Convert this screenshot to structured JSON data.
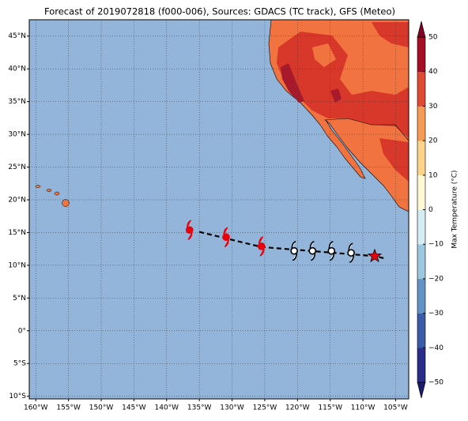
{
  "title": "Forecast of 2019072818 (f000-006), Sources: GDACS (TC track), GFS (Meteo)",
  "map": {
    "xlim": [
      -161,
      -103
    ],
    "ylim": [
      -10.4,
      47.5
    ],
    "xticks": [
      {
        "value": -160,
        "label": "160°W"
      },
      {
        "value": -155,
        "label": "155°W"
      },
      {
        "value": -150,
        "label": "150°W"
      },
      {
        "value": -145,
        "label": "145°W"
      },
      {
        "value": -140,
        "label": "140°W"
      },
      {
        "value": -135,
        "label": "135°W"
      },
      {
        "value": -130,
        "label": "130°W"
      },
      {
        "value": -125,
        "label": "125°W"
      },
      {
        "value": -120,
        "label": "120°W"
      },
      {
        "value": -115,
        "label": "115°W"
      },
      {
        "value": -110,
        "label": "110°W"
      },
      {
        "value": -105,
        "label": "105°W"
      }
    ],
    "yticks": [
      {
        "value": -10,
        "label": "10°S"
      },
      {
        "value": -5,
        "label": "5°S"
      },
      {
        "value": 0,
        "label": "0°"
      },
      {
        "value": 5,
        "label": "5°N"
      },
      {
        "value": 10,
        "label": "10°N"
      },
      {
        "value": 15,
        "label": "15°N"
      },
      {
        "value": 20,
        "label": "20°N"
      },
      {
        "value": 25,
        "label": "25°N"
      },
      {
        "value": 30,
        "label": "30°N"
      },
      {
        "value": 35,
        "label": "35°N"
      },
      {
        "value": 40,
        "label": "40°N"
      },
      {
        "value": 45,
        "label": "45°N"
      }
    ],
    "grid": true
  },
  "colorbar": {
    "label": "Max Temperature (°C)",
    "lim": [
      -50,
      50
    ],
    "ticks": [
      {
        "value": -50,
        "label": "−50"
      },
      {
        "value": -40,
        "label": "−40"
      },
      {
        "value": -30,
        "label": "−30"
      },
      {
        "value": -20,
        "label": "−20"
      },
      {
        "value": -10,
        "label": "−10"
      },
      0,
      10,
      20,
      30,
      40,
      50
    ],
    "colors": [
      "#2a2c8a",
      "#3a5ba8",
      "#6393c4",
      "#9cc7df",
      "#d5ecf2",
      "#fef9d3",
      "#fed48a",
      "#f79a55",
      "#df4a32",
      "#a50f26"
    ],
    "under": "#1b1b6e",
    "over": "#800026"
  },
  "track": {
    "x": [
      -136.5,
      -130.9,
      -125.5,
      -120.5,
      -117.7,
      -114.8,
      -111.8,
      -108.2
    ],
    "y": [
      15.4,
      14.3,
      12.9,
      12.2,
      12.2,
      12.2,
      11.9,
      11.4
    ],
    "colors": [
      "#e8000b",
      "#e8000b",
      "#e8000b",
      "#000000",
      "#000000",
      "#000000",
      "#000000",
      "#e8000b"
    ],
    "line_x": [
      -135,
      -125.5,
      -108.2,
      -106.4
    ],
    "line_y": [
      15.1,
      12.8,
      11.4,
      11.0
    ]
  }
}
